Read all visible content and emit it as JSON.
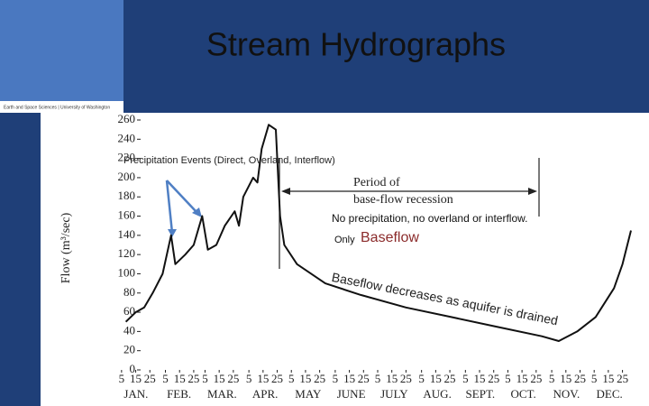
{
  "slide_title": "Stream Hydrographs",
  "logo_text": "Earth and Space Sciences | University of Washington",
  "chart_data": {
    "type": "line",
    "y_label": "Flow (m³/sec)",
    "annotations": {
      "precip": "Precipitation Events (Direct, Overland, Interflow)",
      "period1": "Period of",
      "period2": "base-flow  recession",
      "noprecip": "No precipitation, no overland or interflow.",
      "only": "Only",
      "baseflow": "Baseflow",
      "decrease": "Baseflow decreases as aquifer is drained"
    },
    "month_labels": [
      "JAN.",
      "FEB.",
      "MAR.",
      "APR.",
      "MAY",
      "JUNE",
      "JULY",
      "AUG.",
      "SEPT.",
      "OCT.",
      "NOV.",
      "DEC."
    ],
    "x": [
      8,
      15,
      21,
      27,
      34,
      40,
      43,
      50,
      56,
      62,
      66,
      72,
      78,
      85,
      88,
      91,
      98,
      101,
      104,
      109,
      114,
      117,
      120,
      129,
      149,
      174,
      206,
      238,
      270,
      302,
      314,
      327,
      340,
      353,
      359,
      365
    ],
    "series": [
      {
        "name": "Flow",
        "color": "#111111",
        "values": [
          50,
          60,
          65,
          80,
          100,
          140,
          110,
          120,
          130,
          160,
          125,
          130,
          150,
          165,
          150,
          180,
          200,
          195,
          230,
          255,
          250,
          160,
          130,
          110,
          90,
          78,
          65,
          55,
          45,
          35,
          30,
          40,
          55,
          85,
          110,
          145
        ]
      }
    ],
    "xlim": [
      0,
      365
    ],
    "ylim": [
      0,
      260
    ],
    "yticks": [
      0,
      20,
      40,
      60,
      80,
      100,
      120,
      140,
      160,
      180,
      200,
      220,
      240,
      260
    ],
    "xticks": [
      {
        "value": 5,
        "label": "5"
      },
      {
        "value": 15,
        "label": "15"
      },
      {
        "value": 25,
        "label": "25"
      },
      {
        "value": 36,
        "label": "5"
      },
      {
        "value": 46,
        "label": "15"
      },
      {
        "value": 56,
        "label": "25"
      },
      {
        "value": 64,
        "label": "5"
      },
      {
        "value": 74,
        "label": "15"
      },
      {
        "value": 84,
        "label": "25"
      },
      {
        "value": 95,
        "label": "5"
      },
      {
        "value": 105,
        "label": "15"
      },
      {
        "value": 115,
        "label": "25"
      },
      {
        "value": 125,
        "label": "5"
      },
      {
        "value": 135,
        "label": "15"
      },
      {
        "value": 145,
        "label": "25"
      },
      {
        "value": 156,
        "label": "5"
      },
      {
        "value": 166,
        "label": "15"
      },
      {
        "value": 176,
        "label": "25"
      },
      {
        "value": 186,
        "label": "5"
      },
      {
        "value": 196,
        "label": "15"
      },
      {
        "value": 206,
        "label": "25"
      },
      {
        "value": 217,
        "label": "5"
      },
      {
        "value": 227,
        "label": "15"
      },
      {
        "value": 237,
        "label": "25"
      },
      {
        "value": 248,
        "label": "5"
      },
      {
        "value": 258,
        "label": "15"
      },
      {
        "value": 268,
        "label": "25"
      },
      {
        "value": 278,
        "label": "5"
      },
      {
        "value": 288,
        "label": "15"
      },
      {
        "value": 298,
        "label": "25"
      },
      {
        "value": 309,
        "label": "5"
      },
      {
        "value": 319,
        "label": "15"
      },
      {
        "value": 329,
        "label": "25"
      },
      {
        "value": 339,
        "label": "5"
      },
      {
        "value": 349,
        "label": "15"
      },
      {
        "value": 359,
        "label": "25"
      }
    ]
  }
}
